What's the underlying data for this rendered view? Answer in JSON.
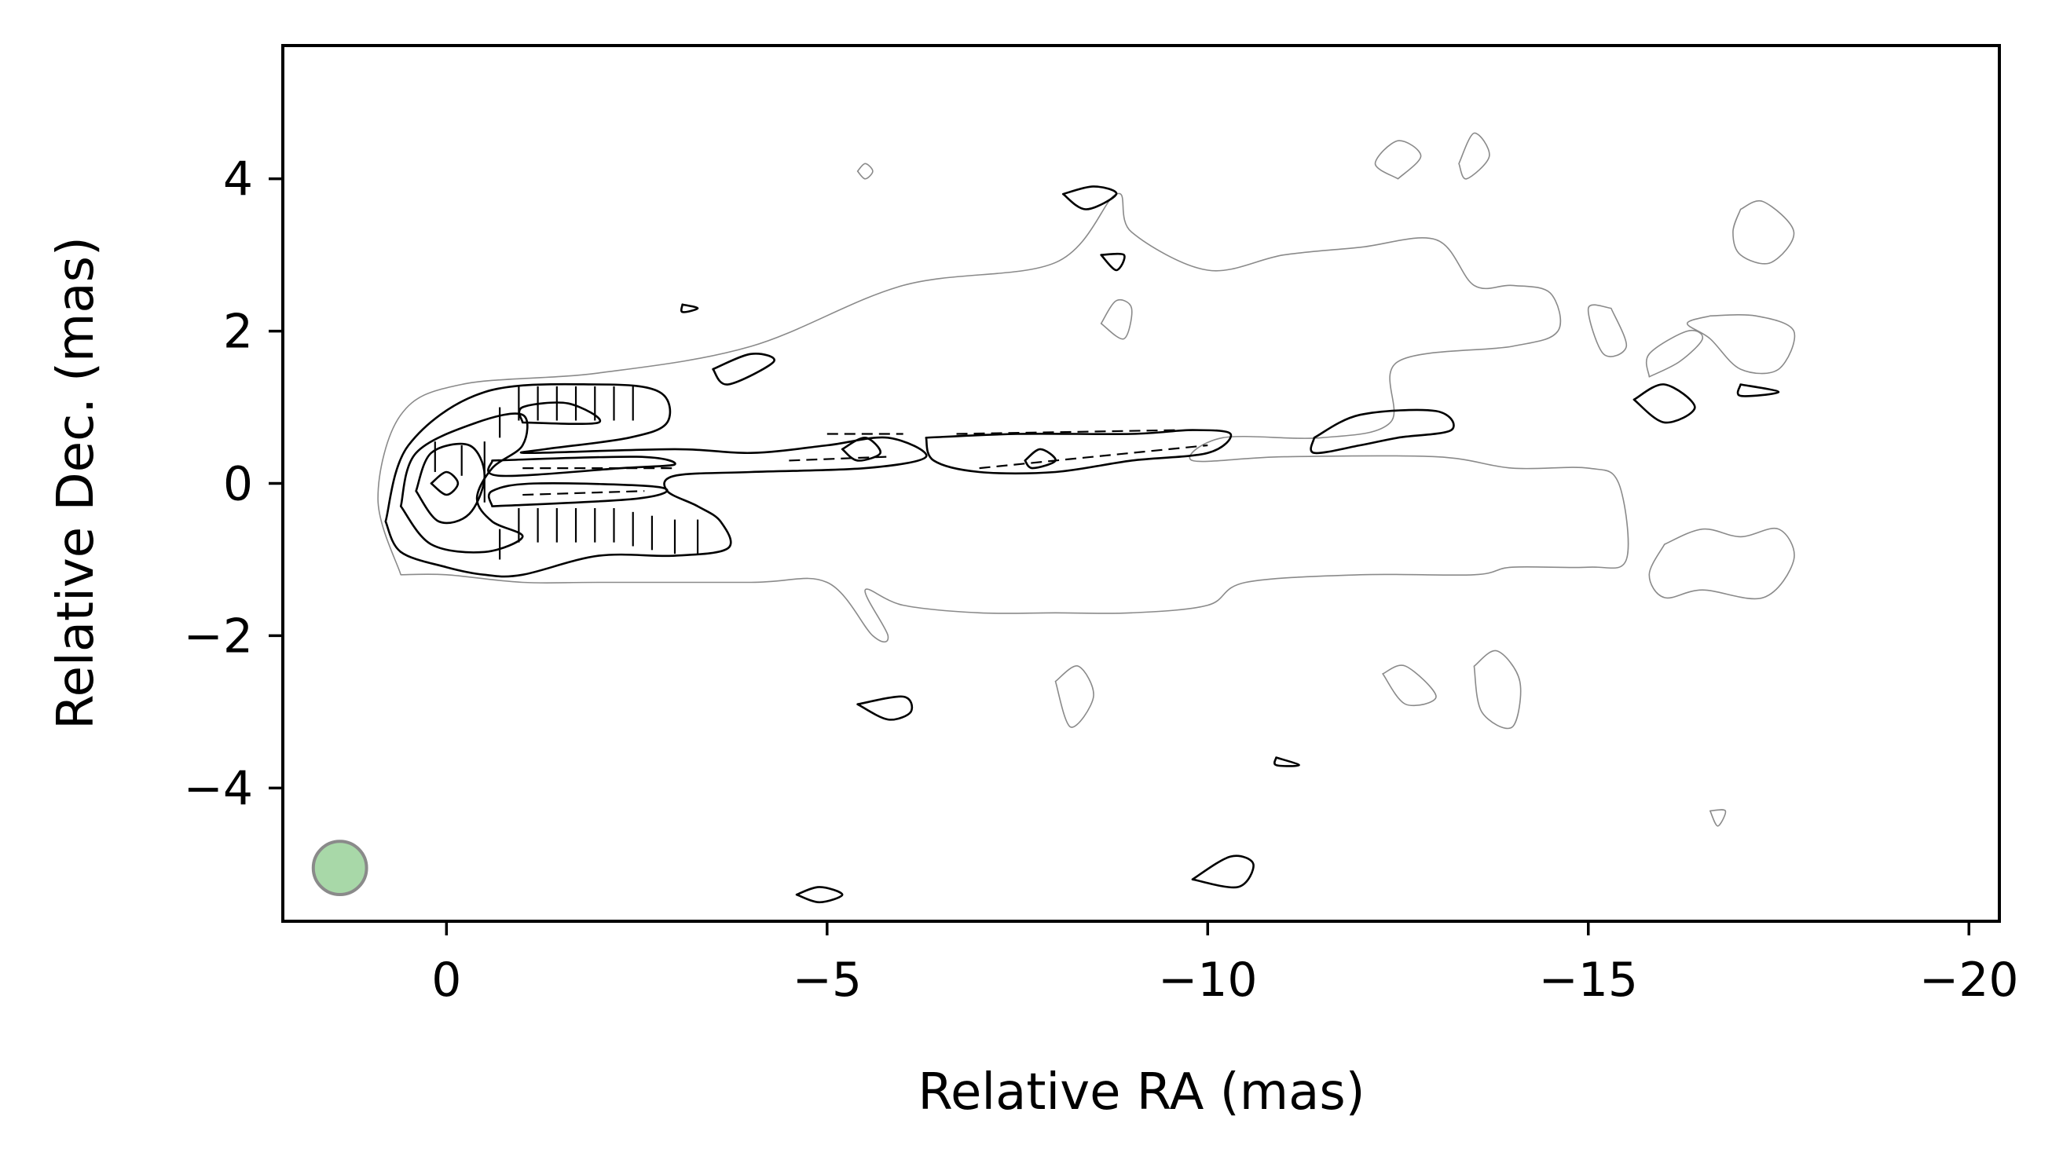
{
  "chart_data": {
    "type": "contour",
    "title": "",
    "xlabel": "Relative RA (mas)",
    "ylabel": "Relative Dec. (mas)",
    "xlim": [
      2.15,
      -20.4
    ],
    "ylim": [
      -5.75,
      5.75
    ],
    "xticks": [
      0,
      -5,
      -10,
      -15,
      -20
    ],
    "xtick_labels": [
      "0",
      "−5",
      "−10",
      "−15",
      "−20"
    ],
    "yticks": [
      4,
      2,
      0,
      -2,
      -4
    ],
    "ytick_labels": [
      "4",
      "2",
      "0",
      "−2",
      "−4"
    ],
    "grid": false,
    "beam": {
      "x": 1.4,
      "y": -5.05,
      "diameter_mas": 0.7,
      "color": "#90c990"
    },
    "colors": {
      "contour_main": "#000000",
      "contour_low": "#8a8a8a",
      "beam_fill": "#a8d8a8",
      "beam_edge": "#8a8a8a"
    },
    "grey_contours": [
      [
        [
          0.6,
          -1.2
        ],
        [
          0.9,
          -0.2
        ],
        [
          0.6,
          0.9
        ],
        [
          -0.2,
          1.3
        ],
        [
          -2,
          1.45
        ],
        [
          -4,
          1.8
        ],
        [
          -6,
          2.6
        ],
        [
          -8,
          2.9
        ],
        [
          -8.8,
          3.8
        ],
        [
          -9,
          3.3
        ],
        [
          -10,
          2.8
        ],
        [
          -11,
          3.0
        ],
        [
          -12,
          3.1
        ],
        [
          -13,
          3.2
        ],
        [
          -13.5,
          2.6
        ],
        [
          -14,
          2.6
        ],
        [
          -14.5,
          2.5
        ],
        [
          -14.6,
          2.0
        ],
        [
          -14,
          1.8
        ],
        [
          -12.5,
          1.6
        ],
        [
          -12.4,
          0.8
        ],
        [
          -11.5,
          0.6
        ],
        [
          -10.2,
          0.6
        ],
        [
          -9.8,
          0.3
        ],
        [
          -11,
          0.35
        ],
        [
          -13,
          0.35
        ],
        [
          -14,
          0.2
        ],
        [
          -15,
          0.2
        ],
        [
          -15.4,
          0.0
        ],
        [
          -15.5,
          -1.0
        ],
        [
          -15,
          -1.1
        ],
        [
          -14,
          -1.1
        ],
        [
          -13.5,
          -1.2
        ],
        [
          -12,
          -1.2
        ],
        [
          -10.5,
          -1.3
        ],
        [
          -10,
          -1.6
        ],
        [
          -9,
          -1.7
        ],
        [
          -8,
          -1.7
        ],
        [
          -7,
          -1.7
        ],
        [
          -6,
          -1.6
        ],
        [
          -5.5,
          -1.4
        ],
        [
          -5.8,
          -2.0
        ],
        [
          -5.6,
          -2.0
        ],
        [
          -5,
          -1.3
        ],
        [
          -4,
          -1.3
        ],
        [
          -2,
          -1.3
        ],
        [
          -1,
          -1.3
        ],
        [
          0,
          -1.2
        ],
        [
          0.6,
          -1.2
        ]
      ],
      [
        [
          -16,
          -0.8
        ],
        [
          -16.5,
          -0.6
        ],
        [
          -17,
          -0.7
        ],
        [
          -17.5,
          -0.6
        ],
        [
          -17.7,
          -1.0
        ],
        [
          -17.3,
          -1.5
        ],
        [
          -16.5,
          -1.4
        ],
        [
          -16,
          -1.5
        ],
        [
          -15.8,
          -1.2
        ],
        [
          -16,
          -0.8
        ]
      ],
      [
        [
          -16.6,
          2.2
        ],
        [
          -17.2,
          2.2
        ],
        [
          -17.7,
          2.0
        ],
        [
          -17.5,
          1.5
        ],
        [
          -17,
          1.5
        ],
        [
          -16.6,
          1.9
        ],
        [
          -16.3,
          2.1
        ],
        [
          -16.6,
          2.2
        ]
      ],
      [
        [
          -17,
          3.6
        ],
        [
          -17.3,
          3.7
        ],
        [
          -17.7,
          3.3
        ],
        [
          -17.4,
          2.9
        ],
        [
          -17,
          3.0
        ],
        [
          -16.9,
          3.3
        ],
        [
          -17,
          3.6
        ]
      ],
      [
        [
          -15.3,
          2.3
        ],
        [
          -15.0,
          2.3
        ],
        [
          -15.2,
          1.7
        ],
        [
          -15.5,
          1.8
        ],
        [
          -15.3,
          2.3
        ]
      ],
      [
        [
          -15.8,
          1.4
        ],
        [
          -16.2,
          1.6
        ],
        [
          -16.5,
          1.9
        ],
        [
          -16.3,
          2.0
        ],
        [
          -15.8,
          1.7
        ],
        [
          -15.8,
          1.4
        ]
      ],
      [
        [
          -12.5,
          4.0
        ],
        [
          -12.8,
          4.3
        ],
        [
          -12.5,
          4.5
        ],
        [
          -12.2,
          4.2
        ],
        [
          -12.5,
          4.0
        ]
      ],
      [
        [
          -13.3,
          4.2
        ],
        [
          -13.5,
          4.6
        ],
        [
          -13.7,
          4.3
        ],
        [
          -13.4,
          4.0
        ],
        [
          -13.3,
          4.2
        ]
      ],
      [
        [
          -8.6,
          2.1
        ],
        [
          -8.8,
          2.4
        ],
        [
          -9,
          2.3
        ],
        [
          -8.9,
          1.9
        ],
        [
          -8.6,
          2.1
        ]
      ],
      [
        [
          -8.0,
          -2.6
        ],
        [
          -8.3,
          -2.4
        ],
        [
          -8.5,
          -2.8
        ],
        [
          -8.2,
          -3.2
        ],
        [
          -8.0,
          -2.6
        ]
      ],
      [
        [
          -12.3,
          -2.5
        ],
        [
          -12.6,
          -2.4
        ],
        [
          -13,
          -2.8
        ],
        [
          -12.6,
          -2.9
        ],
        [
          -12.3,
          -2.5
        ]
      ],
      [
        [
          -13.5,
          -2.4
        ],
        [
          -13.8,
          -2.2
        ],
        [
          -14.1,
          -2.6
        ],
        [
          -14,
          -3.2
        ],
        [
          -13.6,
          -3.0
        ],
        [
          -13.5,
          -2.4
        ]
      ],
      [
        [
          -5.4,
          4.1
        ],
        [
          -5.5,
          4.2
        ],
        [
          -5.6,
          4.1
        ],
        [
          -5.5,
          4.0
        ],
        [
          -5.4,
          4.1
        ]
      ],
      [
        [
          -16.6,
          -4.3
        ],
        [
          -16.8,
          -4.3
        ],
        [
          -16.7,
          -4.5
        ],
        [
          -16.6,
          -4.3
        ]
      ]
    ],
    "black_contours": [
      [
        [
          0.8,
          -0.5
        ],
        [
          0.5,
          0.5
        ],
        [
          -0.5,
          1.2
        ],
        [
          -2,
          1.3
        ],
        [
          -2.8,
          1.2
        ],
        [
          -2.9,
          0.8
        ],
        [
          -2.4,
          0.6
        ],
        [
          -1.3,
          0.45
        ],
        [
          -1.1,
          0.4
        ],
        [
          -3,
          0.45
        ],
        [
          -4,
          0.4
        ],
        [
          -5,
          0.5
        ],
        [
          -5.8,
          0.6
        ],
        [
          -6.3,
          0.35
        ],
        [
          -5.5,
          0.2
        ],
        [
          -4,
          0.15
        ],
        [
          -3,
          0.1
        ],
        [
          -2.9,
          -0.1
        ],
        [
          -3.3,
          -0.3
        ],
        [
          -3.6,
          -0.5
        ],
        [
          -3.7,
          -0.85
        ],
        [
          -3,
          -0.95
        ],
        [
          -2,
          -0.95
        ],
        [
          -1,
          -1.2
        ],
        [
          -0.5,
          -1.2
        ],
        [
          0,
          -1.1
        ],
        [
          0.6,
          -0.9
        ],
        [
          0.8,
          -0.5
        ]
      ],
      [
        [
          0.6,
          -0.3
        ],
        [
          0.4,
          0.4
        ],
        [
          -0.4,
          0.8
        ],
        [
          -1,
          0.9
        ],
        [
          -1,
          0.5
        ],
        [
          -0.6,
          0.2
        ],
        [
          -0.4,
          -0.2
        ],
        [
          -0.6,
          -0.5
        ],
        [
          -1,
          -0.7
        ],
        [
          -0.5,
          -0.9
        ],
        [
          0.2,
          -0.8
        ],
        [
          0.6,
          -0.3
        ]
      ],
      [
        [
          0.4,
          -0.1
        ],
        [
          0.2,
          0.4
        ],
        [
          -0.3,
          0.5
        ],
        [
          -0.5,
          0.1
        ],
        [
          -0.3,
          -0.4
        ],
        [
          0.1,
          -0.5
        ],
        [
          0.4,
          -0.1
        ]
      ],
      [
        [
          0.2,
          0
        ],
        [
          0,
          0.15
        ],
        [
          -0.15,
          0
        ],
        [
          0,
          -0.15
        ],
        [
          0.2,
          0
        ]
      ],
      [
        [
          -0.6,
          0.3
        ],
        [
          -2.5,
          0.35
        ],
        [
          -3,
          0.25
        ],
        [
          -2.3,
          0.2
        ],
        [
          -0.7,
          0.1
        ],
        [
          -0.6,
          0.3
        ]
      ],
      [
        [
          -0.6,
          -0.3
        ],
        [
          -2.5,
          -0.2
        ],
        [
          -2.8,
          -0.05
        ],
        [
          -1.2,
          0.0
        ],
        [
          -0.6,
          -0.1
        ],
        [
          -0.6,
          -0.3
        ]
      ],
      [
        [
          -1,
          0.8
        ],
        [
          -2,
          0.8
        ],
        [
          -1.6,
          1.05
        ],
        [
          -1,
          1.0
        ],
        [
          -1,
          0.8
        ]
      ],
      [
        [
          -6.3,
          0.6
        ],
        [
          -7.5,
          0.65
        ],
        [
          -9,
          0.65
        ],
        [
          -9.8,
          0.7
        ],
        [
          -10.3,
          0.65
        ],
        [
          -10,
          0.4
        ],
        [
          -9,
          0.3
        ],
        [
          -8,
          0.15
        ],
        [
          -7,
          0.15
        ],
        [
          -6.4,
          0.3
        ],
        [
          -6.3,
          0.6
        ]
      ],
      [
        [
          -5.2,
          0.45
        ],
        [
          -5.5,
          0.6
        ],
        [
          -5.7,
          0.4
        ],
        [
          -5.4,
          0.3
        ],
        [
          -5.2,
          0.45
        ]
      ],
      [
        [
          -7.6,
          0.3
        ],
        [
          -7.8,
          0.45
        ],
        [
          -8,
          0.3
        ],
        [
          -7.7,
          0.2
        ],
        [
          -7.6,
          0.3
        ]
      ],
      [
        [
          -11.4,
          0.6
        ],
        [
          -12,
          0.9
        ],
        [
          -13,
          0.95
        ],
        [
          -13.2,
          0.7
        ],
        [
          -12.5,
          0.6
        ],
        [
          -12,
          0.5
        ],
        [
          -11.4,
          0.4
        ],
        [
          -11.4,
          0.6
        ]
      ],
      [
        [
          -15.6,
          1.1
        ],
        [
          -16,
          1.3
        ],
        [
          -16.4,
          1.0
        ],
        [
          -16,
          0.8
        ],
        [
          -15.6,
          1.1
        ]
      ],
      [
        [
          -17,
          1.3
        ],
        [
          -17.5,
          1.2
        ],
        [
          -17,
          1.15
        ],
        [
          -17,
          1.3
        ]
      ],
      [
        [
          -3.5,
          1.5
        ],
        [
          -4,
          1.7
        ],
        [
          -4.3,
          1.6
        ],
        [
          -3.7,
          1.3
        ],
        [
          -3.5,
          1.5
        ]
      ],
      [
        [
          -8.1,
          3.8
        ],
        [
          -8.5,
          3.9
        ],
        [
          -8.8,
          3.8
        ],
        [
          -8.4,
          3.6
        ],
        [
          -8.1,
          3.8
        ]
      ],
      [
        [
          -8.6,
          3.0
        ],
        [
          -8.9,
          3.0
        ],
        [
          -8.8,
          2.8
        ],
        [
          -8.6,
          3.0
        ]
      ],
      [
        [
          -3.1,
          2.35
        ],
        [
          -3.3,
          2.3
        ],
        [
          -3.1,
          2.25
        ],
        [
          -3.1,
          2.35
        ]
      ],
      [
        [
          -5.4,
          -2.9
        ],
        [
          -6,
          -2.8
        ],
        [
          -6.1,
          -3.0
        ],
        [
          -5.8,
          -3.1
        ],
        [
          -5.4,
          -2.9
        ]
      ],
      [
        [
          -9.8,
          -5.2
        ],
        [
          -10.3,
          -4.9
        ],
        [
          -10.6,
          -5.0
        ],
        [
          -10.4,
          -5.3
        ],
        [
          -9.8,
          -5.2
        ]
      ],
      [
        [
          -4.6,
          -5.4
        ],
        [
          -4.9,
          -5.3
        ],
        [
          -5.2,
          -5.4
        ],
        [
          -4.9,
          -5.5
        ],
        [
          -4.6,
          -5.4
        ]
      ],
      [
        [
          -10.9,
          -3.6
        ],
        [
          -11.2,
          -3.7
        ],
        [
          -10.9,
          -3.7
        ],
        [
          -10.9,
          -3.6
        ]
      ]
    ],
    "evpa_vectors": [
      {
        "x": -0.5,
        "y": 0.15,
        "len": 0.8,
        "angle": 90
      },
      {
        "x": -0.95,
        "y": 1.05,
        "len": 0.45,
        "angle": 90
      },
      {
        "x": -1.2,
        "y": 1.05,
        "len": 0.45,
        "angle": 90
      },
      {
        "x": -1.45,
        "y": 1.05,
        "len": 0.45,
        "angle": 90
      },
      {
        "x": -1.7,
        "y": 1.05,
        "len": 0.45,
        "angle": 90
      },
      {
        "x": -1.95,
        "y": 1.05,
        "len": 0.45,
        "angle": 90
      },
      {
        "x": -2.2,
        "y": 1.05,
        "len": 0.45,
        "angle": 90
      },
      {
        "x": -2.45,
        "y": 1.05,
        "len": 0.45,
        "angle": 90
      },
      {
        "x": -0.95,
        "y": -0.55,
        "len": 0.45,
        "angle": 90
      },
      {
        "x": -1.2,
        "y": -0.55,
        "len": 0.45,
        "angle": 90
      },
      {
        "x": -1.45,
        "y": -0.55,
        "len": 0.45,
        "angle": 90
      },
      {
        "x": -1.7,
        "y": -0.55,
        "len": 0.45,
        "angle": 90
      },
      {
        "x": -1.95,
        "y": -0.55,
        "len": 0.45,
        "angle": 90
      },
      {
        "x": -2.2,
        "y": -0.55,
        "len": 0.45,
        "angle": 90
      },
      {
        "x": -2.45,
        "y": -0.6,
        "len": 0.45,
        "angle": 90
      },
      {
        "x": -2.7,
        "y": -0.65,
        "len": 0.45,
        "angle": 90
      },
      {
        "x": -3.0,
        "y": -0.7,
        "len": 0.45,
        "angle": 90
      },
      {
        "x": -3.3,
        "y": -0.7,
        "len": 0.45,
        "angle": 90
      },
      {
        "x": -0.2,
        "y": 0.3,
        "len": 0.4,
        "angle": 90
      },
      {
        "x": 0.15,
        "y": 0.35,
        "len": 0.4,
        "angle": 90
      },
      {
        "x": -0.7,
        "y": 0.8,
        "len": 0.4,
        "angle": 90
      },
      {
        "x": -0.7,
        "y": -0.8,
        "len": 0.4,
        "angle": 90
      }
    ],
    "evpa_dashed_lines": [
      [
        [
          -1.0,
          0.2
        ],
        [
          -3.0,
          0.2
        ]
      ],
      [
        [
          -1.0,
          -0.15
        ],
        [
          -2.6,
          -0.1
        ]
      ],
      [
        [
          -4.5,
          0.3
        ],
        [
          -5.8,
          0.35
        ]
      ],
      [
        [
          -5.0,
          0.65
        ],
        [
          -6.0,
          0.65
        ]
      ],
      [
        [
          -6.7,
          0.65
        ],
        [
          -9.6,
          0.7
        ]
      ],
      [
        [
          -7.0,
          0.2
        ],
        [
          -10.0,
          0.5
        ]
      ]
    ]
  }
}
